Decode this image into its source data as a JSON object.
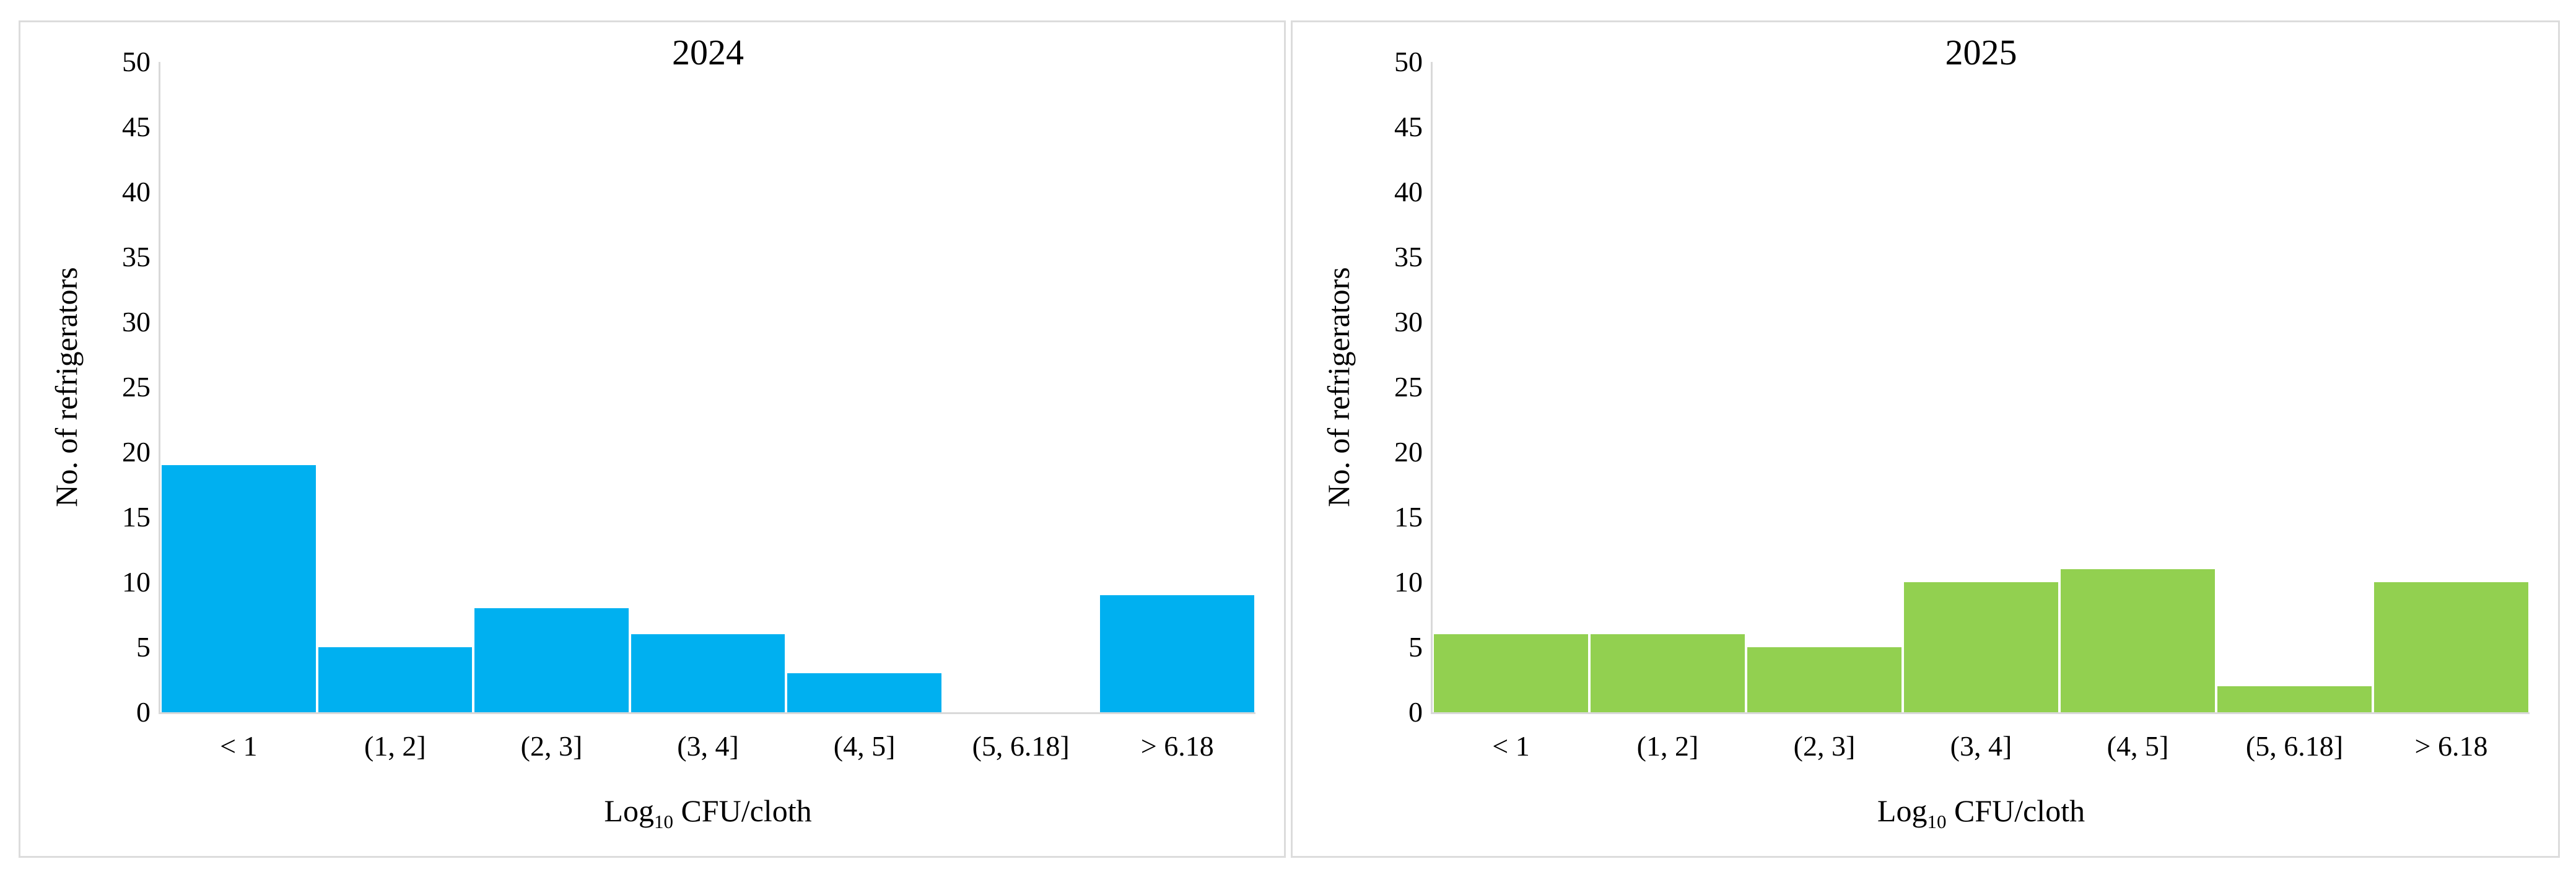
{
  "figure": {
    "background": "#ffffff",
    "panel_border_color": "#dcdcdc",
    "axis_line_color": "#d9d9d9",
    "text_color": "#000000"
  },
  "chart_data": [
    {
      "type": "bar",
      "title": "2024",
      "categories": [
        "< 1",
        "(1, 2]",
        "(2, 3]",
        "(3, 4]",
        "(4, 5]",
        "(5, 6.18]",
        "> 6.18"
      ],
      "values": [
        19,
        5,
        8,
        6,
        3,
        0,
        9
      ],
      "bar_color": "#00B0F0",
      "ylabel": "No. of refrigerators",
      "xlabel": {
        "prefix": "Log",
        "sub": "10",
        "rest": " CFU/cloth"
      },
      "ylim": [
        0,
        50
      ],
      "yticks": [
        0,
        5,
        10,
        15,
        20,
        25,
        30,
        35,
        40,
        45,
        50
      ],
      "grid": false,
      "legend": "none"
    },
    {
      "type": "bar",
      "title": "2025",
      "categories": [
        "< 1",
        "(1, 2]",
        "(2, 3]",
        "(3, 4]",
        "(4, 5]",
        "(5, 6.18]",
        "> 6.18"
      ],
      "values": [
        6,
        6,
        5,
        10,
        11,
        2,
        10
      ],
      "bar_color": "#92D050",
      "ylabel": "No. of refrigerators",
      "xlabel": {
        "prefix": "Log",
        "sub": "10",
        "rest": " CFU/cloth"
      },
      "ylim": [
        0,
        50
      ],
      "yticks": [
        0,
        5,
        10,
        15,
        20,
        25,
        30,
        35,
        40,
        45,
        50
      ],
      "grid": false,
      "legend": "none"
    }
  ]
}
